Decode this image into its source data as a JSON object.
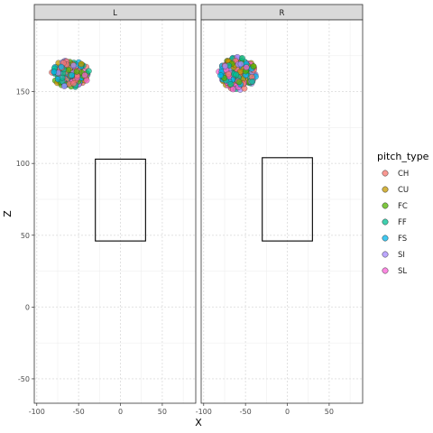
{
  "chart_data": {
    "type": "scatter",
    "facets": [
      "L",
      "R"
    ],
    "xlabel": "X",
    "ylabel": "Z",
    "xlim": [
      -103,
      90
    ],
    "ylim": [
      -67,
      200
    ],
    "x_ticks": [
      -100,
      -50,
      0,
      50
    ],
    "y_ticks": [
      -50,
      0,
      50,
      100,
      150
    ],
    "grid": true,
    "legend": {
      "title": "pitch_type",
      "position": "right",
      "entries": [
        {
          "label": "CH",
          "color": "#F8766D"
        },
        {
          "label": "CU",
          "color": "#C49A00"
        },
        {
          "label": "FC",
          "color": "#53B400"
        },
        {
          "label": "FF",
          "color": "#00C094"
        },
        {
          "label": "FS",
          "color": "#00B6EB"
        },
        {
          "label": "SI",
          "color": "#A58AFF"
        },
        {
          "label": "SL",
          "color": "#FB61D7"
        }
      ]
    },
    "strike_zones": [
      {
        "facet": "L",
        "x": [
          -30,
          30
        ],
        "z": [
          46,
          103
        ]
      },
      {
        "facet": "R",
        "x": [
          -30,
          30
        ],
        "z": [
          46,
          104
        ]
      }
    ],
    "clusters": [
      {
        "facet": "L",
        "x_range": [
          -83,
          -37
        ],
        "z_range": [
          153,
          172
        ],
        "types": [
          "CH",
          "CU",
          "FC",
          "FF",
          "FS",
          "SI",
          "SL"
        ]
      },
      {
        "facet": "R",
        "x_range": [
          -82,
          -37
        ],
        "z_range": [
          151,
          174
        ],
        "types": [
          "CH",
          "CU",
          "FC",
          "FF",
          "FS",
          "SI",
          "SL"
        ]
      }
    ]
  }
}
